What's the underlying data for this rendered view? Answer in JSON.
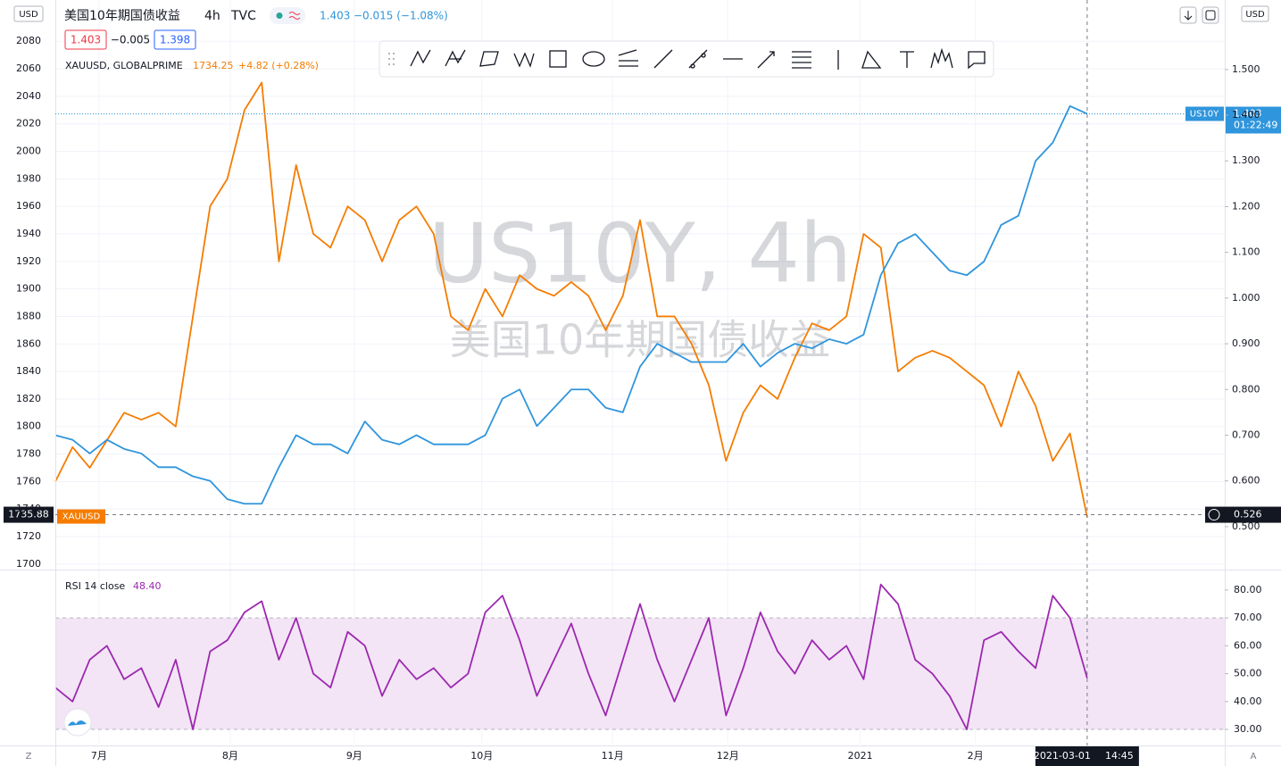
{
  "chart_data": [
    {
      "type": "line",
      "title": "美国10年期国债收益",
      "interval": "4h",
      "source": "TVC",
      "header_last": "1.403",
      "header_change": "−0.015 (−1.08%)",
      "bid": "1.403",
      "spread": "−0.005",
      "ask": "1.398",
      "compare_title": "XAUUSD, GLOBALPRIME",
      "compare_last": "1734.25",
      "compare_change": "+4.82 (+0.28%)",
      "watermark": "US10Y, 4h",
      "watermark_sub": "美国10年期国债收益",
      "currency_left": "USD",
      "currency_right": "USD",
      "x": [
        0,
        1,
        2,
        3,
        4,
        5,
        6,
        7,
        8,
        9,
        10,
        11,
        12,
        13,
        14,
        15,
        16,
        17,
        18,
        19,
        20,
        21,
        22,
        23,
        24,
        25,
        26,
        27,
        28,
        29,
        30,
        31,
        32,
        33,
        34,
        35,
        36,
        37,
        38,
        39,
        40,
        41,
        42,
        43,
        44,
        45,
        46,
        47,
        48,
        49,
        50,
        51,
        52,
        53,
        54,
        55,
        56,
        57,
        58,
        59,
        60
      ],
      "xlim": [
        0,
        68
      ],
      "xticks": [
        {
          "value": 2.54,
          "label": "7月"
        },
        {
          "value": 10.17,
          "label": "8月"
        },
        {
          "value": 17.38,
          "label": "9月"
        },
        {
          "value": 24.8,
          "label": "10月"
        },
        {
          "value": 32.4,
          "label": "11月"
        },
        {
          "value": 39.1,
          "label": "12月"
        },
        {
          "value": 46.8,
          "label": "2021"
        },
        {
          "value": 53.5,
          "label": "2月"
        }
      ],
      "ylim": [
        1696,
        2110
      ],
      "yticks": [
        1700,
        1720,
        1740,
        1760,
        1780,
        1800,
        1820,
        1840,
        1860,
        1880,
        1900,
        1920,
        1940,
        1960,
        1980,
        2000,
        2020,
        2040,
        2060,
        2080
      ],
      "y2lim": [
        0.406,
        1.652
      ],
      "y2ticks": [
        {
          "value": 0.5,
          "label": "0.500"
        },
        {
          "value": 0.6,
          "label": "0.600"
        },
        {
          "value": 0.7,
          "label": "0.700"
        },
        {
          "value": 0.8,
          "label": "0.800"
        },
        {
          "value": 0.9,
          "label": "0.900"
        },
        {
          "value": 1.0,
          "label": "1.000"
        },
        {
          "value": 1.1,
          "label": "1.100"
        },
        {
          "value": 1.2,
          "label": "1.200"
        },
        {
          "value": 1.3,
          "label": "1.300"
        },
        {
          "value": 1.4,
          "label": "1.400"
        },
        {
          "value": 1.5,
          "label": "1.500"
        }
      ],
      "grid": true,
      "series": [
        {
          "name": "XAUUSD",
          "color": "#f57c00",
          "values": [
            1760,
            1785,
            1770,
            1790,
            1810,
            1805,
            1810,
            1800,
            1880,
            1960,
            1980,
            2030,
            2050,
            1920,
            1990,
            1940,
            1930,
            1960,
            1950,
            1920,
            1950,
            1960,
            1940,
            1880,
            1870,
            1900,
            1880,
            1910,
            1900,
            1895,
            1905,
            1895,
            1870,
            1895,
            1950,
            1880,
            1880,
            1860,
            1830,
            1775,
            1810,
            1830,
            1820,
            1850,
            1875,
            1870,
            1880,
            1940,
            1930,
            1840,
            1850,
            1855,
            1850,
            1840,
            1830,
            1800,
            1840,
            1815,
            1775,
            1795,
            1734
          ]
        },
        {
          "name": "US10Y",
          "color": "#2f95dc",
          "axis": "y2",
          "values": [
            0.7,
            0.69,
            0.66,
            0.69,
            0.67,
            0.66,
            0.63,
            0.63,
            0.61,
            0.6,
            0.56,
            0.55,
            0.55,
            0.63,
            0.7,
            0.68,
            0.68,
            0.66,
            0.73,
            0.69,
            0.68,
            0.7,
            0.68,
            0.68,
            0.68,
            0.7,
            0.78,
            0.8,
            0.72,
            0.76,
            0.8,
            0.8,
            0.76,
            0.75,
            0.85,
            0.9,
            0.88,
            0.86,
            0.86,
            0.86,
            0.9,
            0.85,
            0.88,
            0.9,
            0.89,
            0.91,
            0.9,
            0.92,
            1.05,
            1.12,
            1.14,
            1.1,
            1.06,
            1.05,
            1.08,
            1.16,
            1.18,
            1.3,
            1.34,
            1.42,
            1.403
          ]
        }
      ],
      "price_tag": {
        "label": "US10Y",
        "value": 1.403,
        "countdown": "01:22:49"
      },
      "crosshair": {
        "y": 1735.88,
        "y2": 0.526,
        "date": "2021-03-01",
        "time": "14:45"
      }
    },
    {
      "type": "line",
      "title": "RSI 14 close",
      "last_value": "48.40",
      "color": "#9c27b0",
      "values": [
        45,
        40,
        55,
        60,
        48,
        52,
        38,
        55,
        30,
        58,
        62,
        72,
        76,
        55,
        70,
        50,
        45,
        65,
        60,
        42,
        55,
        48,
        52,
        45,
        50,
        72,
        78,
        62,
        42,
        55,
        68,
        50,
        35,
        55,
        75,
        55,
        40,
        55,
        70,
        35,
        52,
        72,
        58,
        50,
        62,
        55,
        60,
        48,
        82,
        75,
        55,
        50,
        42,
        30,
        62,
        65,
        58,
        52,
        78,
        70,
        48.4
      ],
      "ylim": [
        25.2,
        86.7
      ],
      "yticks": [
        {
          "value": 30,
          "label": "30.00"
        },
        {
          "value": 40,
          "label": "40.00"
        },
        {
          "value": 50,
          "label": "50.00"
        },
        {
          "value": 60,
          "label": "60.00"
        },
        {
          "value": 70,
          "label": "70.00"
        },
        {
          "value": 80,
          "label": "80.00"
        }
      ],
      "band": [
        30,
        70
      ]
    }
  ]
}
